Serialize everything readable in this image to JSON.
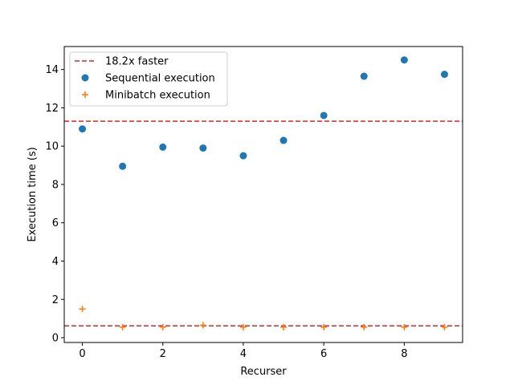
{
  "chart_data": {
    "type": "scatter",
    "xlabel": "Recurser",
    "ylabel": "Execution time (s)",
    "xlim": [
      -0.45,
      9.45
    ],
    "ylim": [
      -0.25,
      15.2
    ],
    "xticks": [
      0,
      2,
      4,
      6,
      8
    ],
    "yticks": [
      0,
      2,
      4,
      6,
      8,
      10,
      12,
      14
    ],
    "grid": false,
    "legend_position": "upper-left",
    "series": [
      {
        "name": "Sequential execution",
        "marker": "circle",
        "color": "#1f77b4",
        "x": [
          0,
          1,
          2,
          3,
          4,
          5,
          6,
          7,
          8,
          9
        ],
        "y": [
          10.9,
          8.95,
          9.95,
          9.9,
          9.5,
          10.3,
          11.6,
          13.65,
          14.5,
          13.75
        ]
      },
      {
        "name": "Minibatch execution",
        "marker": "plus",
        "color": "#ff7f0e",
        "x": [
          0,
          1,
          2,
          3,
          4,
          5,
          6,
          7,
          8,
          9
        ],
        "y": [
          1.5,
          0.55,
          0.55,
          0.65,
          0.55,
          0.55,
          0.55,
          0.55,
          0.55,
          0.55
        ]
      }
    ],
    "hlines": [
      {
        "y": 11.3,
        "color": "#d62728",
        "style": "dashed",
        "label": "18.2x faster"
      },
      {
        "y": 0.62,
        "color": "#d62728",
        "style": "dashed"
      }
    ]
  }
}
